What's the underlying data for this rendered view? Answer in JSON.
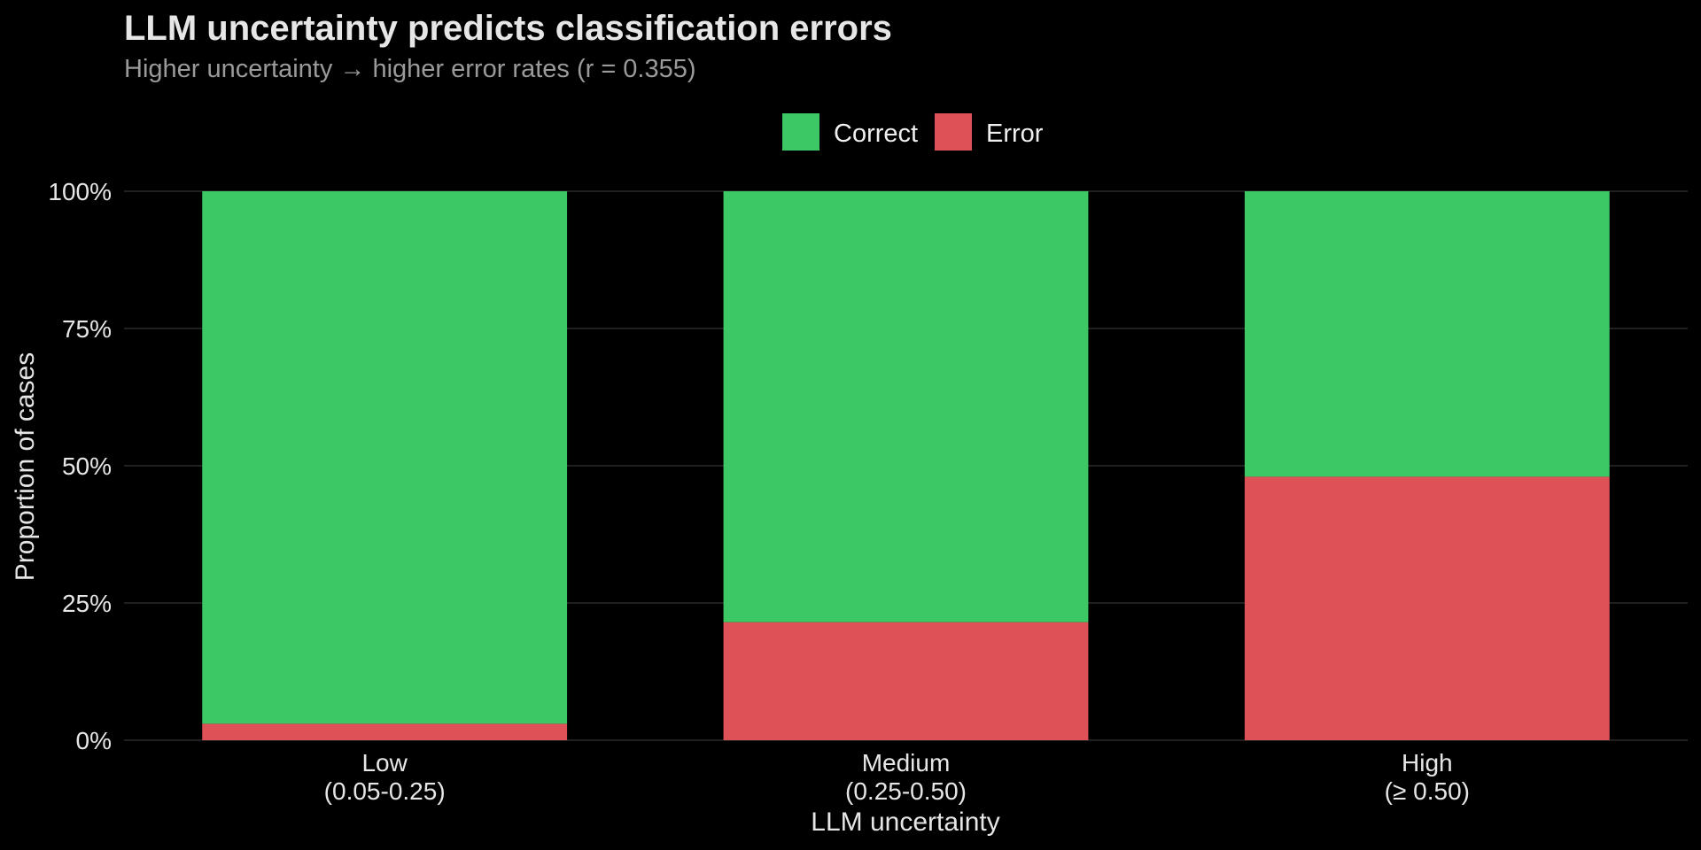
{
  "colors": {
    "correct": "#3cc864",
    "error": "#de5257",
    "grid": "#333333",
    "background": "#000000"
  },
  "chart_data": {
    "type": "bar",
    "stacked": true,
    "title": "LLM uncertainty predicts classification errors",
    "subtitle": "Higher uncertainty → higher error rates (r = 0.355)",
    "xlabel": "LLM uncertainty",
    "ylabel": "Proportion of cases",
    "categories": [
      [
        "Low",
        "(0.05-0.25)"
      ],
      [
        "Medium",
        "(0.25-0.50)"
      ],
      [
        "High",
        "(≥ 0.50)"
      ]
    ],
    "series": [
      {
        "name": "Error",
        "color": "#de5257",
        "values": [
          0.03,
          0.215,
          0.48
        ]
      },
      {
        "name": "Correct",
        "color": "#3cc864",
        "values": [
          0.97,
          0.785,
          0.52
        ]
      }
    ],
    "legend": {
      "position": "top",
      "order": [
        "Correct",
        "Error"
      ]
    },
    "ylim": [
      0,
      1
    ],
    "yticks": [
      0,
      0.25,
      0.5,
      0.75,
      1
    ],
    "ytick_labels": [
      "0%",
      "25%",
      "50%",
      "75%",
      "100%"
    ],
    "grid": true
  }
}
